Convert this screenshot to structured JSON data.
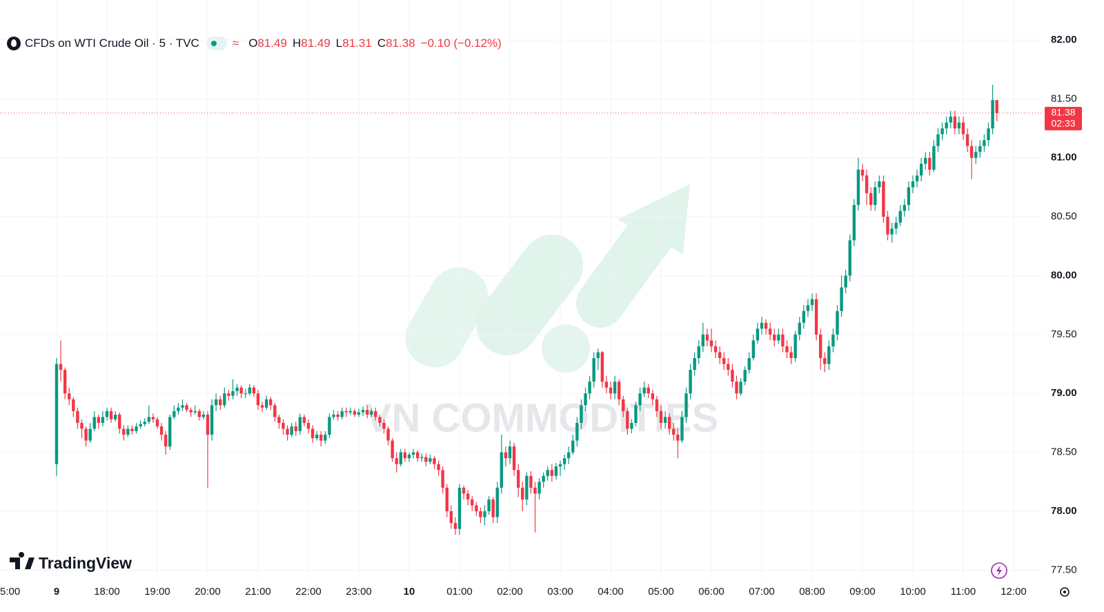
{
  "chart_data": {
    "type": "candlestick",
    "title": "CFDs on WTI Crude Oil · 5 · TVC",
    "ohlc_letters": [
      "O",
      "H",
      "L",
      "C"
    ],
    "change": "−0.10 (−0.12%)",
    "countdown": "02:33",
    "up_color": "#089981",
    "down_color": "#f23645",
    "x_labels": [
      "5:00",
      "9",
      "18:00",
      "19:00",
      "20:00",
      "21:00",
      "22:00",
      "23:00",
      "10",
      "01:00",
      "02:00",
      "03:00",
      "04:00",
      "05:00",
      "06:00",
      "07:00",
      "08:00",
      "09:00",
      "10:00",
      "11:00",
      "12:00"
    ],
    "ylim": [
      77.42,
      82.34
    ],
    "yticks": [
      {
        "value": 77.5,
        "label": "77.50"
      },
      {
        "value": 78,
        "label": "78.00"
      },
      {
        "value": 78.5,
        "label": "78.50"
      },
      {
        "value": 79,
        "label": "79.00"
      },
      {
        "value": 79.5,
        "label": "79.50"
      },
      {
        "value": 80,
        "label": "80.00"
      },
      {
        "value": 80.5,
        "label": "80.50"
      },
      {
        "value": 81,
        "label": "81.00"
      },
      {
        "value": 81.5,
        "label": "81.50"
      },
      {
        "value": 82,
        "label": "82.00"
      }
    ],
    "grid": true,
    "open": [
      78.4,
      79.25,
      79.2,
      79.0,
      78.95,
      78.85,
      78.75,
      78.7,
      78.6,
      78.7,
      78.8,
      78.75,
      78.8,
      78.85,
      78.78,
      78.82,
      78.7,
      78.65,
      78.7,
      78.68,
      78.72,
      78.74,
      78.76,
      78.8,
      78.78,
      78.72,
      78.65,
      78.55,
      78.8,
      78.85,
      78.88,
      78.9,
      78.86,
      78.84,
      78.85,
      78.8,
      78.82,
      78.65,
      78.9,
      78.95,
      78.9,
      79.0,
      78.98,
      79.02,
      79.05,
      79.0,
      79.0,
      79.05,
      79.0,
      78.9,
      78.88,
      78.95,
      78.9,
      78.8,
      78.75,
      78.7,
      78.65,
      78.72,
      78.68,
      78.8,
      78.75,
      78.7,
      78.62,
      78.65,
      78.6,
      78.65,
      78.8,
      78.82,
      78.8,
      78.85,
      78.84,
      78.85,
      78.82,
      78.84,
      78.86,
      78.82,
      78.85,
      78.8,
      78.75,
      78.7,
      78.6,
      78.45,
      78.4,
      78.5,
      78.45,
      78.48,
      78.5,
      78.45,
      78.46,
      78.42,
      78.45,
      78.4,
      78.35,
      78.2,
      78.0,
      77.9,
      77.85,
      78.2,
      78.15,
      78.1,
      78.05,
      78.0,
      77.95,
      78.0,
      78.1,
      77.95,
      78.2,
      78.5,
      78.45,
      78.55,
      78.35,
      78.2,
      78.1,
      78.3,
      78.2,
      78.15,
      78.25,
      78.3,
      78.35,
      78.3,
      78.38,
      78.4,
      78.45,
      78.5,
      78.6,
      78.75,
      78.9,
      79.0,
      79.1,
      79.3,
      79.35,
      79.1,
      79.05,
      79.0,
      79.1,
      78.95,
      78.85,
      78.7,
      78.75,
      78.9,
      79.0,
      79.05,
      79.0,
      78.95,
      78.85,
      78.75,
      78.8,
      78.7,
      78.65,
      78.6,
      78.8,
      79.0,
      79.2,
      79.3,
      79.4,
      79.5,
      79.45,
      79.4,
      79.35,
      79.3,
      79.25,
      79.2,
      79.1,
      79.0,
      79.1,
      79.2,
      79.3,
      79.45,
      79.55,
      79.6,
      79.55,
      79.5,
      79.45,
      79.5,
      79.4,
      79.35,
      79.3,
      79.5,
      79.6,
      79.7,
      79.75,
      79.8,
      79.5,
      79.3,
      79.25,
      79.4,
      79.5,
      79.7,
      79.9,
      80.0,
      80.3,
      80.6,
      80.9,
      80.85,
      80.7,
      80.6,
      80.75,
      80.8,
      80.5,
      80.35,
      80.4,
      80.45,
      80.55,
      80.6,
      80.75,
      80.8,
      80.85,
      80.95,
      81.0,
      80.9,
      81.1,
      81.2,
      81.25,
      81.3,
      81.35,
      81.25,
      81.3,
      81.2,
      81.1,
      81.0,
      81.05,
      81.1,
      81.15,
      81.25,
      81.49
    ],
    "high": [
      79.3,
      79.45,
      79.22,
      79.05,
      78.97,
      78.88,
      78.78,
      78.72,
      78.75,
      78.85,
      78.82,
      78.85,
      78.88,
      78.88,
      78.85,
      78.84,
      78.73,
      78.73,
      78.73,
      78.75,
      78.77,
      78.79,
      78.9,
      78.83,
      78.8,
      78.75,
      78.68,
      78.82,
      78.9,
      78.92,
      78.95,
      78.92,
      78.88,
      78.9,
      78.87,
      78.85,
      78.85,
      78.95,
      79.0,
      78.98,
      79.05,
      79.03,
      79.12,
      79.08,
      79.07,
      79.04,
      79.08,
      79.07,
      79.03,
      78.93,
      78.98,
      78.97,
      78.92,
      78.82,
      78.78,
      78.73,
      78.75,
      78.76,
      78.83,
      78.82,
      78.78,
      78.73,
      78.68,
      78.68,
      78.68,
      78.83,
      78.86,
      78.85,
      78.88,
      78.88,
      78.88,
      78.87,
      78.87,
      78.89,
      78.9,
      78.87,
      78.88,
      78.82,
      78.78,
      78.72,
      78.62,
      78.5,
      78.53,
      78.53,
      78.5,
      78.53,
      78.52,
      78.49,
      78.49,
      78.48,
      78.47,
      78.43,
      78.38,
      78.23,
      78.05,
      77.95,
      78.23,
      78.22,
      78.18,
      78.13,
      78.08,
      78.03,
      78.05,
      78.13,
      78.12,
      78.25,
      78.65,
      78.55,
      78.6,
      78.58,
      78.4,
      78.25,
      78.33,
      78.34,
      78.25,
      78.28,
      78.33,
      78.38,
      78.4,
      78.41,
      78.43,
      78.48,
      78.55,
      78.65,
      78.8,
      78.95,
      79.05,
      79.15,
      79.35,
      79.38,
      79.36,
      79.15,
      79.1,
      79.15,
      79.12,
      78.98,
      78.88,
      78.78,
      78.93,
      79.05,
      79.1,
      79.08,
      79.03,
      78.98,
      78.9,
      78.85,
      78.83,
      78.75,
      78.7,
      78.85,
      79.05,
      79.25,
      79.35,
      79.45,
      79.6,
      79.55,
      79.55,
      79.45,
      79.4,
      79.35,
      79.3,
      79.25,
      79.15,
      79.13,
      79.23,
      79.35,
      79.5,
      79.6,
      79.65,
      79.63,
      79.6,
      79.55,
      79.55,
      79.55,
      79.45,
      79.4,
      79.53,
      79.65,
      79.75,
      79.8,
      79.85,
      79.85,
      79.55,
      79.35,
      79.45,
      79.55,
      79.75,
      80.0,
      80.05,
      80.35,
      80.65,
      81.0,
      80.95,
      80.9,
      80.75,
      80.8,
      80.85,
      80.85,
      80.55,
      80.45,
      80.5,
      80.6,
      80.65,
      80.8,
      80.85,
      80.9,
      81.0,
      81.05,
      81.05,
      81.15,
      81.25,
      81.3,
      81.35,
      81.4,
      81.4,
      81.35,
      81.35,
      81.25,
      81.15,
      81.1,
      81.15,
      81.2,
      81.3,
      81.62,
      81.49
    ],
    "low": [
      78.3,
      79.1,
      78.95,
      78.9,
      78.8,
      78.7,
      78.62,
      78.55,
      78.58,
      78.68,
      78.7,
      78.72,
      78.77,
      78.75,
      78.76,
      78.66,
      78.6,
      78.63,
      78.65,
      78.66,
      78.7,
      78.72,
      78.74,
      78.75,
      78.7,
      78.6,
      78.48,
      78.52,
      78.78,
      78.82,
      78.85,
      78.84,
      78.8,
      78.82,
      78.77,
      78.78,
      78.2,
      78.6,
      78.85,
      78.86,
      78.88,
      78.94,
      78.95,
      78.98,
      78.96,
      78.96,
      78.98,
      78.97,
      78.86,
      78.84,
      78.86,
      78.86,
      78.76,
      78.7,
      78.65,
      78.6,
      78.63,
      78.64,
      78.65,
      78.72,
      78.66,
      78.58,
      78.6,
      78.55,
      78.57,
      78.62,
      78.78,
      78.77,
      78.78,
      78.8,
      78.82,
      78.8,
      78.8,
      78.81,
      78.79,
      78.8,
      78.77,
      78.72,
      78.66,
      78.56,
      78.42,
      78.33,
      78.38,
      78.42,
      78.42,
      78.45,
      78.42,
      78.42,
      78.38,
      78.4,
      78.36,
      78.3,
      78.15,
      77.95,
      77.85,
      77.8,
      77.8,
      78.1,
      78.05,
      78.0,
      77.96,
      77.9,
      77.88,
      77.97,
      77.9,
      77.9,
      78.15,
      78.38,
      78.4,
      78.3,
      78.12,
      78.0,
      78.05,
      78.15,
      77.82,
      78.1,
      78.2,
      78.26,
      78.25,
      78.27,
      78.3,
      78.35,
      78.4,
      78.48,
      78.55,
      78.7,
      78.85,
      78.95,
      79.05,
      79.2,
      79.05,
      79.0,
      78.95,
      78.95,
      78.9,
      78.8,
      78.65,
      78.66,
      78.72,
      78.85,
      78.97,
      78.96,
      78.9,
      78.8,
      78.7,
      78.7,
      78.65,
      78.6,
      78.45,
      78.58,
      78.75,
      78.95,
      79.15,
      79.25,
      79.35,
      79.4,
      79.35,
      79.3,
      79.25,
      79.2,
      79.15,
      79.05,
      78.95,
      78.98,
      79.07,
      79.17,
      79.28,
      79.42,
      79.5,
      79.5,
      79.45,
      79.4,
      79.42,
      79.35,
      79.3,
      79.25,
      79.27,
      79.45,
      79.55,
      79.65,
      79.7,
      79.45,
      79.2,
      79.18,
      79.2,
      79.35,
      79.45,
      79.65,
      79.85,
      79.95,
      80.25,
      80.55,
      80.8,
      80.6,
      80.55,
      80.55,
      80.7,
      80.45,
      80.3,
      80.28,
      80.35,
      80.42,
      80.5,
      80.55,
      80.7,
      80.75,
      80.8,
      80.9,
      80.85,
      80.88,
      81.05,
      81.15,
      81.2,
      81.25,
      81.2,
      81.2,
      81.15,
      81.05,
      80.82,
      80.95,
      81.0,
      81.05,
      81.1,
      81.2,
      81.31
    ],
    "close": [
      79.25,
      79.2,
      79.0,
      78.95,
      78.85,
      78.75,
      78.7,
      78.6,
      78.7,
      78.8,
      78.75,
      78.8,
      78.85,
      78.78,
      78.82,
      78.7,
      78.65,
      78.7,
      78.68,
      78.72,
      78.74,
      78.76,
      78.8,
      78.78,
      78.72,
      78.65,
      78.55,
      78.8,
      78.85,
      78.88,
      78.9,
      78.86,
      78.84,
      78.85,
      78.8,
      78.82,
      78.65,
      78.9,
      78.95,
      78.9,
      79.0,
      78.98,
      79.02,
      79.05,
      79.0,
      79.0,
      79.05,
      79.0,
      78.9,
      78.88,
      78.95,
      78.9,
      78.8,
      78.75,
      78.7,
      78.65,
      78.72,
      78.68,
      78.8,
      78.75,
      78.7,
      78.62,
      78.65,
      78.6,
      78.65,
      78.8,
      78.82,
      78.8,
      78.85,
      78.84,
      78.85,
      78.82,
      78.84,
      78.86,
      78.82,
      78.85,
      78.8,
      78.75,
      78.7,
      78.6,
      78.45,
      78.4,
      78.5,
      78.45,
      78.48,
      78.5,
      78.45,
      78.46,
      78.42,
      78.45,
      78.4,
      78.35,
      78.2,
      78.0,
      77.9,
      77.85,
      78.2,
      78.15,
      78.1,
      78.05,
      78.0,
      77.95,
      78.0,
      78.1,
      77.95,
      78.2,
      78.5,
      78.45,
      78.55,
      78.35,
      78.2,
      78.1,
      78.3,
      78.2,
      78.15,
      78.25,
      78.3,
      78.35,
      78.3,
      78.38,
      78.4,
      78.45,
      78.5,
      78.6,
      78.75,
      78.9,
      79.0,
      79.1,
      79.3,
      79.35,
      79.1,
      79.05,
      79.0,
      79.1,
      78.95,
      78.85,
      78.7,
      78.75,
      78.9,
      79.0,
      79.05,
      79.0,
      78.95,
      78.85,
      78.75,
      78.8,
      78.7,
      78.65,
      78.6,
      78.8,
      79.0,
      79.2,
      79.3,
      79.4,
      79.5,
      79.45,
      79.4,
      79.35,
      79.3,
      79.25,
      79.2,
      79.1,
      79.0,
      79.1,
      79.2,
      79.3,
      79.45,
      79.55,
      79.6,
      79.55,
      79.5,
      79.45,
      79.5,
      79.4,
      79.35,
      79.3,
      79.5,
      79.6,
      79.7,
      79.75,
      79.8,
      79.5,
      79.3,
      79.25,
      79.4,
      79.5,
      79.7,
      79.9,
      80.0,
      80.3,
      80.6,
      80.9,
      80.85,
      80.7,
      80.6,
      80.75,
      80.8,
      80.5,
      80.35,
      80.4,
      80.45,
      80.55,
      80.6,
      80.75,
      80.8,
      80.85,
      80.95,
      81.0,
      80.9,
      81.1,
      81.2,
      81.25,
      81.3,
      81.35,
      81.25,
      81.3,
      81.2,
      81.1,
      81.0,
      81.05,
      81.1,
      81.15,
      81.25,
      81.49,
      81.38
    ]
  },
  "watermark": "VN COMMODITIES",
  "brand": "TradingView"
}
